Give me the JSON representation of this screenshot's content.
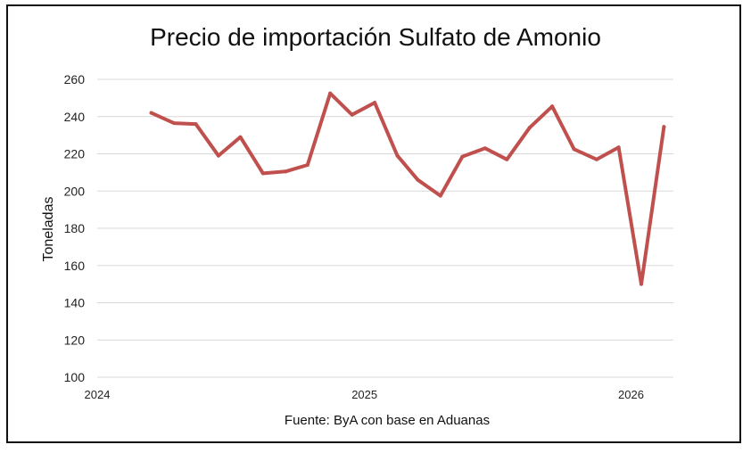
{
  "chart_data": {
    "type": "line",
    "title": "Precio de importación Sulfato de Amonio",
    "xlabel": "",
    "ylabel": "Toneladas",
    "source": "Fuente: ByA con base en Aduanas",
    "ylim": [
      100,
      260
    ],
    "yticks": [
      100,
      120,
      140,
      160,
      180,
      200,
      220,
      240,
      260
    ],
    "xlim": [
      "2024-01-01",
      "2026-02-28"
    ],
    "xticks": [
      {
        "date": "2024-01-01",
        "label": "2024"
      },
      {
        "date": "2025-01-01",
        "label": "2025"
      },
      {
        "date": "2026-01-01",
        "label": "2026"
      }
    ],
    "grid": true,
    "legend": "none",
    "colors": {
      "line": "#c0504d",
      "grid": "#d9d9d9"
    },
    "series": [
      {
        "x": [
          "2024-03",
          "2024-04",
          "2024-05",
          "2024-06",
          "2024-07",
          "2024-08",
          "2024-09",
          "2024-10",
          "2024-11",
          "2024-12",
          "2025-01",
          "2025-02",
          "2025-03",
          "2025-04",
          "2025-05",
          "2025-06",
          "2025-07",
          "2025-08",
          "2025-09",
          "2025-10",
          "2025-11",
          "2025-12",
          "2026-01",
          "2026-02"
        ],
        "values": [
          242,
          236.5,
          236,
          219,
          229,
          209.5,
          210.5,
          214,
          252.5,
          241,
          247.5,
          219,
          206,
          197.5,
          218.5,
          223,
          217,
          234,
          245.5,
          222.5,
          217,
          223.5,
          150,
          234.5
        ]
      }
    ]
  }
}
